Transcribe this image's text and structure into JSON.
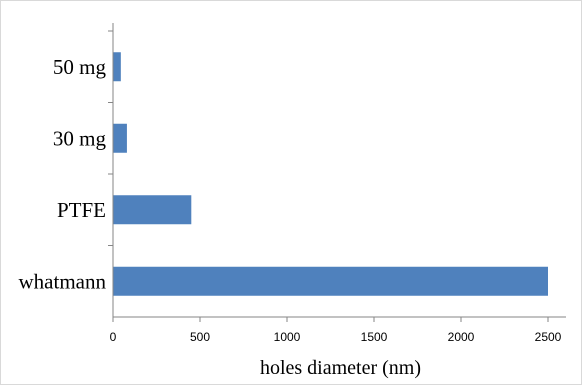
{
  "chart_data": {
    "type": "bar",
    "orientation": "horizontal",
    "categories": [
      "50 mg",
      "30 mg",
      "PTFE",
      "whatmann"
    ],
    "values": [
      45,
      80,
      450,
      2500
    ],
    "xlabel": "holes diameter (nm)",
    "ylabel": "",
    "xlim": [
      0,
      2500
    ],
    "xticks": [
      0,
      500,
      1000,
      1500,
      2000,
      2500
    ],
    "grid": false,
    "bar_color": "#4f81bd"
  }
}
